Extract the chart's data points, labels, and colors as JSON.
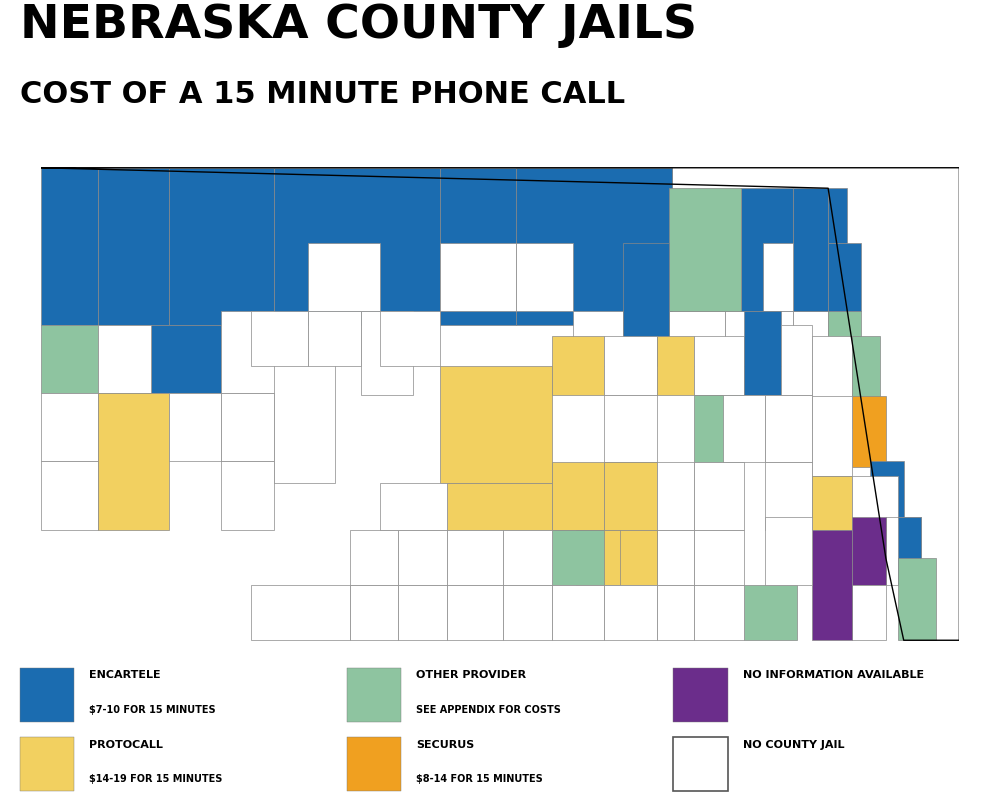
{
  "title_line1": "NEBRASKA COUNTY JAILS",
  "title_line2": "COST OF A 15 MINUTE PHONE CALL",
  "colors": {
    "encartele": "#1B6CB0",
    "protocall": "#F2D060",
    "other_provider": "#8EC4A0",
    "securus": "#F0A020",
    "no_info": "#6B2D8B",
    "no_jail": "#FFFFFF",
    "border": "#AAAAAA"
  },
  "county_providers": {
    "Sioux": "encartele",
    "Dawes": "encartele",
    "Sheridan": "encartele",
    "Cherry": "encartele",
    "Keya Paha": "encartele",
    "Boyd": "encartele",
    "Brown": "encartele",
    "Rock": "encartele",
    "Holt": "encartele",
    "Antelope": "encartele",
    "Knox": "other_provider",
    "Cedar": "encartele",
    "Dixon": "encartele",
    "Dakota": "encartele",
    "Thurston": "encartele",
    "Box Butte": "encartele",
    "Scotts Bluff": "other_provider",
    "Banner": "no_jail",
    "Kimball": "no_jail",
    "Cheyenne": "protocall",
    "Deuel": "no_jail",
    "Garden": "no_jail",
    "Morrill": "no_jail",
    "Grant": "no_jail",
    "Hooker": "no_jail",
    "Thomas": "no_jail",
    "Blaine": "no_jail",
    "Loup": "no_jail",
    "Garfield": "no_jail",
    "Wheeler": "no_jail",
    "Boone": "no_jail",
    "Madison": "no_jail",
    "Stanton": "no_jail",
    "Cuming": "no_jail",
    "Burt": "other_provider",
    "Wayne": "no_jail",
    "Perkins": "no_jail",
    "Keith": "no_jail",
    "Lincoln": "no_jail",
    "Logan": "no_jail",
    "McPherson": "no_jail",
    "Arthur": "no_jail",
    "Custer": "protocall",
    "Valley": "protocall",
    "Greeley": "no_jail",
    "Sherman": "no_jail",
    "Howard": "protocall",
    "Nance": "no_jail",
    "Merrick": "other_provider",
    "Platte": "encartele",
    "Colfax": "no_jail",
    "Dodge": "no_jail",
    "Washington": "other_provider",
    "Douglas": "securus",
    "Sarpy": "encartele",
    "Saunders": "no_jail",
    "Dawson": "protocall",
    "Buffalo": "protocall",
    "Hall": "protocall",
    "Hamilton": "no_jail",
    "Chase": "no_jail",
    "Hayes": "no_jail",
    "Frontier": "no_jail",
    "Gosper": "no_jail",
    "Phelps": "other_provider",
    "Kearney": "protocall",
    "Adams": "protocall",
    "Clay": "no_jail",
    "Fillmore": "no_jail",
    "Saline": "no_jail",
    "York": "no_jail",
    "Polk": "no_jail",
    "Butler": "no_jail",
    "Seward": "no_jail",
    "Lancaster": "protocall",
    "Cass": "no_jail",
    "Otoe": "no_jail",
    "Johnson": "no_info",
    "Nemaha": "encartele",
    "Pawnee": "no_jail",
    "Richardson": "other_provider",
    "Gage": "no_info",
    "Jefferson": "other_provider",
    "Thayer": "no_jail",
    "Nuckolls": "no_jail",
    "Webster": "no_jail",
    "Franklin": "no_jail",
    "Harlan": "no_jail",
    "Furnas": "no_jail",
    "Red Willow": "no_jail",
    "Hitchcock": "no_jail",
    "Dundy": "no_jail"
  },
  "legend_row1": [
    {
      "key": "encartele",
      "label": "ENCARTELE",
      "sublabel": "$7-10 FOR 15 MINUTES"
    },
    {
      "key": "other_provider",
      "label": "OTHER PROVIDER",
      "sublabel": "SEE APPENDIX FOR COSTS"
    },
    {
      "key": "no_info",
      "label": "NO INFORMATION AVAILABLE",
      "sublabel": ""
    }
  ],
  "legend_row2": [
    {
      "key": "protocall",
      "label": "PROTOCALL",
      "sublabel": "$14-19 FOR 15 MINUTES"
    },
    {
      "key": "securus",
      "label": "SECURUS",
      "sublabel": "$8-14 FOR 15 MINUTES"
    },
    {
      "key": "no_jail",
      "label": "NO COUNTY JAIL",
      "sublabel": ""
    }
  ],
  "figsize": [
    10,
    8
  ]
}
